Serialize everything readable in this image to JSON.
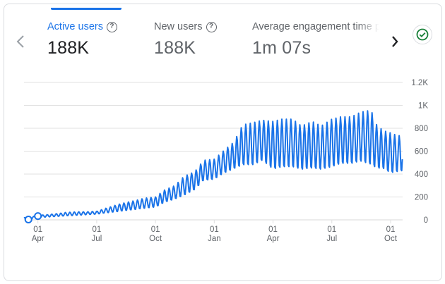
{
  "metrics": [
    {
      "label": "Active users",
      "value": "188K"
    },
    {
      "label": "New users",
      "value": "188K"
    },
    {
      "label": "Average engagement time p",
      "value": "1m 07s"
    }
  ],
  "icons": {
    "help": "help-icon",
    "prev": "chevron-left-icon",
    "next": "chevron-right-icon",
    "status": "check-circle-icon"
  },
  "colors": {
    "accent": "#1a73e8",
    "line": "#1a73e8",
    "status_green": "#188038",
    "grid": "#e0e0e0",
    "axis_text": "#5f6368"
  },
  "chart_data": {
    "type": "line",
    "title": "",
    "xlabel": "",
    "ylabel": "",
    "y_ticks": [
      "1.2K",
      "1K",
      "800",
      "600",
      "400",
      "200",
      "0"
    ],
    "ylim": [
      0,
      1200
    ],
    "grid": true,
    "x_ticks": [
      {
        "day": "01",
        "month": "Apr"
      },
      {
        "day": "01",
        "month": "Jul"
      },
      {
        "day": "01",
        "month": "Oct"
      },
      {
        "day": "01",
        "month": "Jan"
      },
      {
        "day": "01",
        "month": "Apr"
      },
      {
        "day": "01",
        "month": "Jul"
      },
      {
        "day": "01",
        "month": "Oct"
      }
    ],
    "series": [
      {
        "x": [
          "Mar 10",
          "Mar 17",
          "Mar 24",
          "Apr 01",
          "Apr 15",
          "May 01",
          "May 15",
          "Jun 01",
          "Jun 15",
          "Jul 01",
          "Jul 15",
          "Aug 01",
          "Aug 15",
          "Sep 01",
          "Sep 15",
          "Oct 01",
          "Oct 15",
          "Nov 01",
          "Nov 15",
          "Dec 01",
          "Dec 15",
          "Jan 01",
          "Jan 15",
          "Feb 01",
          "Feb 15",
          "Mar 01",
          "Mar 15",
          "Apr 01",
          "Apr 15",
          "May 01",
          "May 15",
          "Jun 01",
          "Jun 15",
          "Jul 01",
          "Jul 15",
          "Aug 01",
          "Aug 15",
          "Sep 01",
          "Sep 10",
          "Sep 20",
          "Oct 01",
          "Oct 10",
          "Oct 20"
        ],
        "y": [
          10,
          5,
          20,
          30,
          35,
          40,
          50,
          55,
          60,
          60,
          80,
          100,
          110,
          130,
          145,
          160,
          210,
          240,
          290,
          340,
          430,
          440,
          500,
          560,
          640,
          650,
          700,
          680,
          700,
          700,
          640,
          680,
          640,
          690,
          720,
          720,
          740,
          750,
          780,
          720,
          660,
          650,
          620
        ],
        "high": [
          20,
          15,
          30,
          40,
          45,
          55,
          65,
          70,
          70,
          75,
          100,
          130,
          150,
          170,
          190,
          200,
          260,
          300,
          380,
          420,
          520,
          530,
          600,
          680,
          830,
          850,
          870,
          860,
          880,
          880,
          820,
          860,
          820,
          880,
          900,
          900,
          940,
          960,
          830,
          780,
          760,
          740,
          730
        ],
        "low": [
          5,
          0,
          10,
          20,
          25,
          30,
          35,
          40,
          45,
          50,
          60,
          70,
          80,
          90,
          100,
          110,
          150,
          180,
          210,
          260,
          340,
          350,
          400,
          440,
          470,
          470,
          510,
          430,
          450,
          450,
          430,
          440,
          430,
          450,
          480,
          480,
          500,
          470,
          440,
          440,
          400,
          410,
          420
        ]
      }
    ],
    "markers": [
      {
        "x": "Mar 17",
        "y": 0
      },
      {
        "x": "Apr 01",
        "y": 30
      }
    ]
  }
}
